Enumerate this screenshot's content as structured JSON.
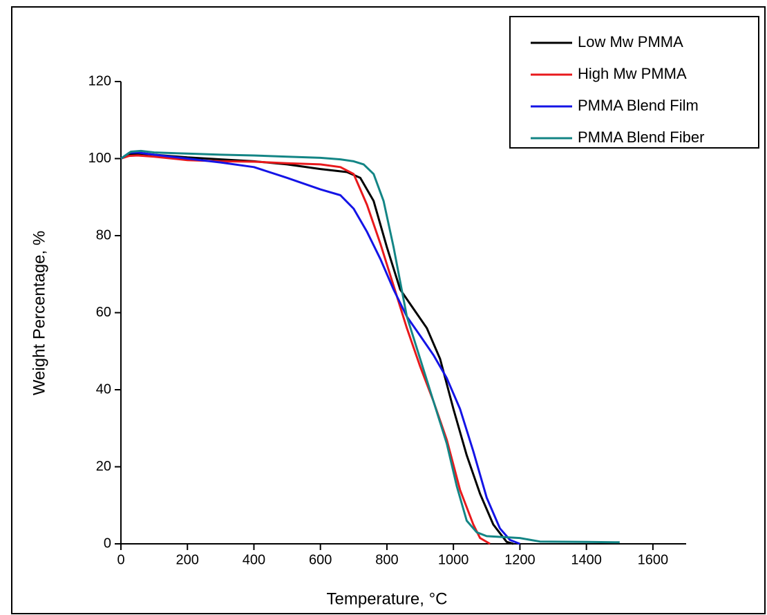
{
  "chart_data": {
    "type": "line",
    "x_label": "Temperature, °C",
    "y_label": "Weight Percentage, %",
    "xlim": [
      0,
      1700
    ],
    "ylim": [
      0,
      120
    ],
    "xticks": [
      0,
      200,
      400,
      600,
      800,
      1000,
      1200,
      1400,
      1600
    ],
    "yticks": [
      0,
      20,
      40,
      60,
      80,
      100,
      120
    ],
    "legend": "upper right",
    "series": [
      {
        "name": "Low Mw PMMA",
        "color": "#000000",
        "x": [
          0,
          25,
          50,
          100,
          200,
          300,
          400,
          500,
          600,
          680,
          720,
          760,
          800,
          840,
          880,
          920,
          960,
          1000,
          1040,
          1080,
          1120,
          1160,
          1180
        ],
        "values": [
          100,
          101,
          101.3,
          101,
          100.3,
          99.8,
          99.3,
          98.5,
          97.3,
          96.5,
          95,
          89,
          77,
          66,
          61,
          56,
          48,
          35,
          23,
          13,
          5,
          0.5,
          0
        ]
      },
      {
        "name": "High Mw PMMA",
        "color": "#e8191c",
        "x": [
          0,
          25,
          50,
          100,
          200,
          300,
          400,
          500,
          600,
          660,
          700,
          740,
          780,
          820,
          860,
          900,
          940,
          980,
          1020,
          1060,
          1080,
          1110
        ],
        "values": [
          100,
          100.7,
          100.8,
          100.5,
          99.6,
          99.3,
          99.2,
          98.8,
          98.5,
          97.8,
          96,
          88,
          78,
          67,
          56,
          46,
          37,
          27,
          14,
          5,
          1.5,
          0
        ]
      },
      {
        "name": "PMMA Blend Film",
        "color": "#1414e6",
        "x": [
          0,
          25,
          50,
          100,
          200,
          300,
          400,
          500,
          600,
          660,
          700,
          740,
          780,
          820,
          860,
          900,
          940,
          980,
          1020,
          1060,
          1100,
          1140,
          1170,
          1200
        ],
        "values": [
          100,
          101.5,
          101.6,
          101,
          100,
          99,
          97.8,
          95,
          92,
          90.5,
          87,
          81,
          74,
          66,
          59,
          54,
          49,
          43,
          35,
          24,
          12,
          4,
          1,
          0
        ]
      },
      {
        "name": "PMMA Blend Fiber",
        "color": "#138585",
        "x": [
          0,
          30,
          60,
          100,
          200,
          300,
          400,
          500,
          600,
          660,
          700,
          730,
          760,
          790,
          820,
          860,
          900,
          940,
          980,
          1010,
          1040,
          1070,
          1100,
          1200,
          1260,
          1400,
          1500
        ],
        "values": [
          100,
          101.8,
          102,
          101.6,
          101.3,
          101,
          100.8,
          100.5,
          100.2,
          99.8,
          99.3,
          98.5,
          96,
          89,
          77,
          59,
          48,
          37,
          26,
          15,
          6,
          3,
          2,
          1.5,
          0.6,
          0.5,
          0.4
        ]
      }
    ]
  }
}
